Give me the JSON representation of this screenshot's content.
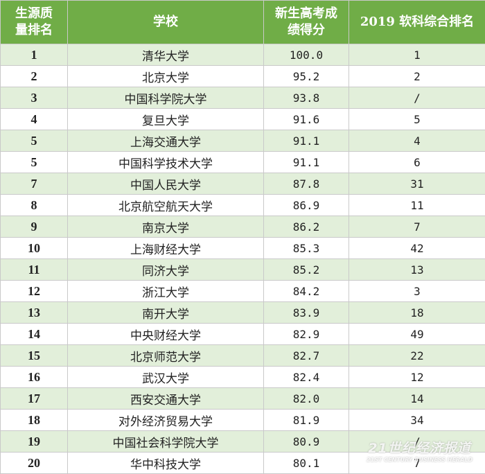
{
  "table": {
    "headers": [
      [
        "生源质",
        "量排名"
      ],
      [
        "学校"
      ],
      [
        "新生高考成",
        "绩得分"
      ],
      [
        "2019 软科综合排名"
      ]
    ],
    "rows": [
      [
        "1",
        "清华大学",
        "100.0",
        "1"
      ],
      [
        "2",
        "北京大学",
        "95.2",
        "2"
      ],
      [
        "3",
        "中国科学院大学",
        "93.8",
        "/"
      ],
      [
        "4",
        "复旦大学",
        "91.6",
        "5"
      ],
      [
        "5",
        "上海交通大学",
        "91.1",
        "4"
      ],
      [
        "5",
        "中国科学技术大学",
        "91.1",
        "6"
      ],
      [
        "7",
        "中国人民大学",
        "87.8",
        "31"
      ],
      [
        "8",
        "北京航空航天大学",
        "86.9",
        "11"
      ],
      [
        "9",
        "南京大学",
        "86.2",
        "7"
      ],
      [
        "10",
        "上海财经大学",
        "85.3",
        "42"
      ],
      [
        "11",
        "同济大学",
        "85.2",
        "13"
      ],
      [
        "12",
        "浙江大学",
        "84.2",
        "3"
      ],
      [
        "13",
        "南开大学",
        "83.9",
        "18"
      ],
      [
        "14",
        "中央财经大学",
        "82.9",
        "49"
      ],
      [
        "15",
        "北京师范大学",
        "82.7",
        "22"
      ],
      [
        "16",
        "武汉大学",
        "82.4",
        "12"
      ],
      [
        "17",
        "西安交通大学",
        "82.0",
        "14"
      ],
      [
        "18",
        "对外经济贸易大学",
        "81.9",
        "34"
      ],
      [
        "19",
        "中国社会科学院大学",
        "80.9",
        "/"
      ],
      [
        "20",
        "华中科技大学",
        "80.1",
        "7"
      ]
    ]
  },
  "watermark": {
    "title": "21世纪经济报道",
    "subtitle": "21ST CENTURY BUSINESS HERALD"
  }
}
